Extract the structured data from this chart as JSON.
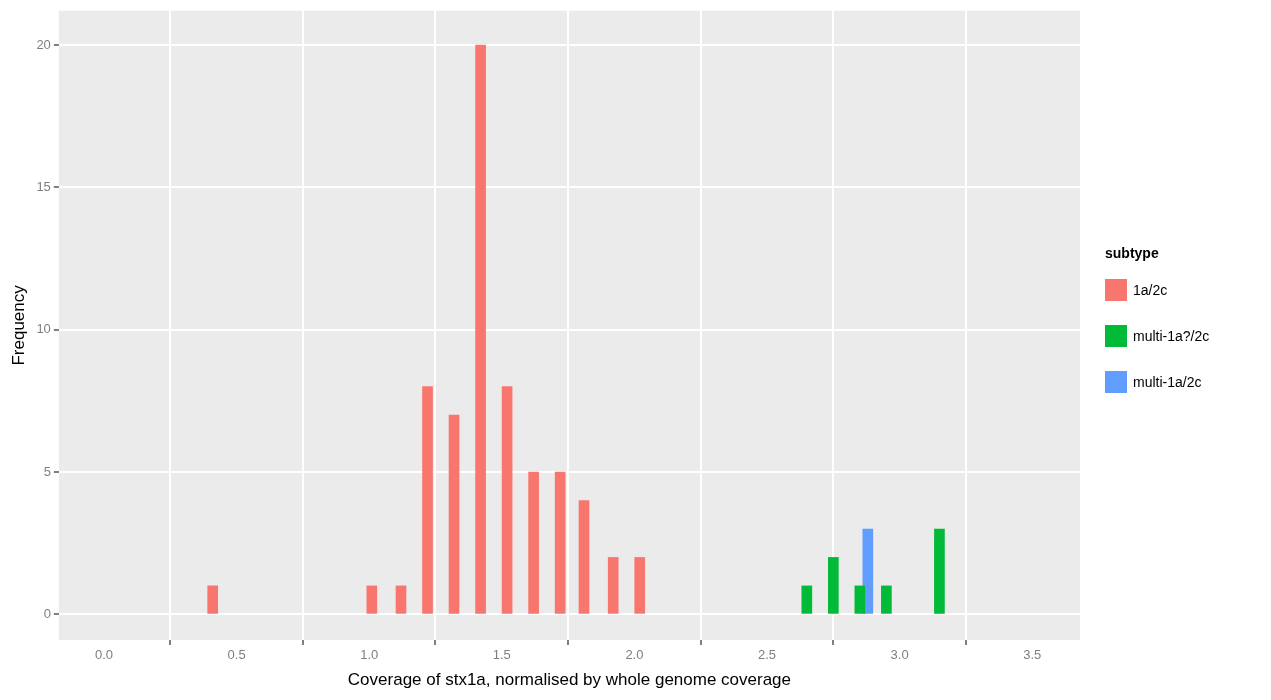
{
  "chart_data": {
    "type": "bar",
    "xlabel": "Coverage of stx1a, normalised by whole genome coverage",
    "ylabel": "Frequency",
    "legend_title": "subtype",
    "legend": "right",
    "grid": true,
    "xlim": [
      -0.17,
      3.68
    ],
    "xticks": [
      {
        "value": 0,
        "label": "0.0"
      },
      {
        "value": 0.5,
        "label": "0.5"
      },
      {
        "value": 1,
        "label": "1.0"
      },
      {
        "value": 1.5,
        "label": "1.5"
      },
      {
        "value": 2,
        "label": "2.0"
      },
      {
        "value": 2.5,
        "label": "2.5"
      },
      {
        "value": 3,
        "label": "3.0"
      },
      {
        "value": 3.5,
        "label": "3.5"
      }
    ],
    "ylim": [
      -0.9,
      21.2
    ],
    "yticks": [
      0,
      5,
      10,
      15,
      20
    ],
    "series": [
      {
        "name": "1a/2c",
        "color": "#f8766d",
        "x": [
          0.41,
          1.01,
          1.12,
          1.22,
          1.32,
          1.42,
          1.52,
          1.62,
          1.72,
          1.81,
          1.92,
          2.02
        ],
        "values": [
          1,
          1,
          1,
          8,
          7,
          20,
          8,
          5,
          5,
          4,
          2,
          2
        ]
      },
      {
        "name": "multi-1a?/2c",
        "color": "#00ba38",
        "x": [
          2.65,
          2.75,
          2.85,
          2.95,
          3.15
        ],
        "values": [
          1,
          2,
          1,
          1,
          3
        ]
      },
      {
        "name": "multi-1a/2c",
        "color": "#619cff",
        "x": [
          2.88
        ],
        "values": [
          3
        ]
      }
    ]
  }
}
